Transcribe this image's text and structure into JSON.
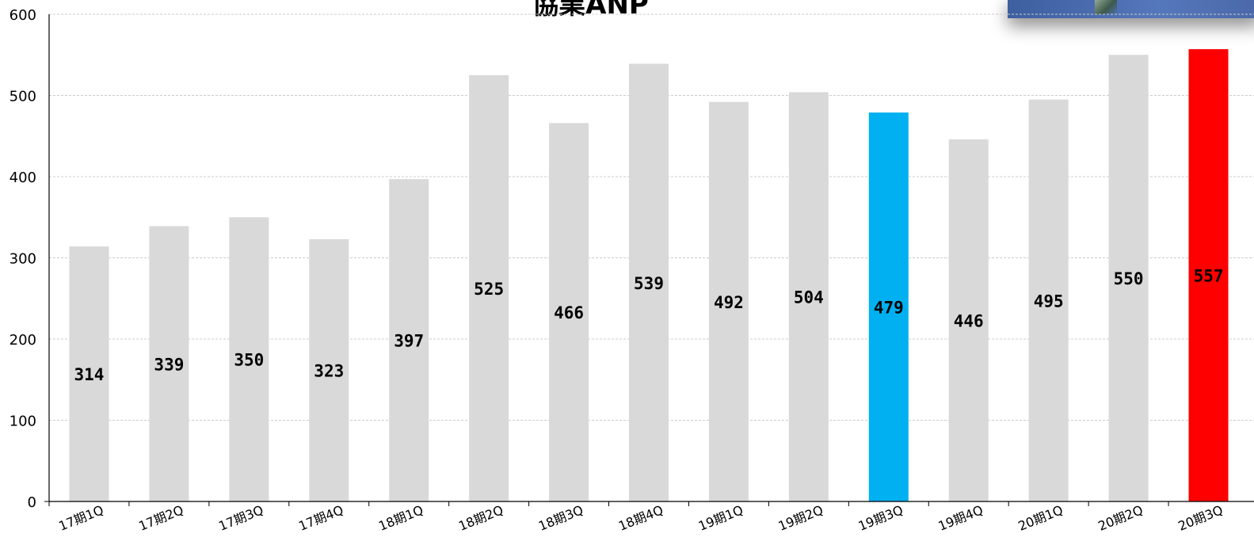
{
  "chart_data": {
    "type": "bar",
    "title": "",
    "categories": [
      "17期1Q",
      "17期2Q",
      "17期3Q",
      "17期4Q",
      "18期1Q",
      "18期2Q",
      "18期3Q",
      "18期4Q",
      "19期1Q",
      "19期2Q",
      "19期3Q",
      "19期4Q",
      "20期1Q",
      "20期2Q",
      "20期3Q"
    ],
    "values": [
      314,
      339,
      350,
      323,
      397,
      525,
      466,
      539,
      492,
      504,
      479,
      446,
      495,
      550,
      557
    ],
    "highlight": {
      "19期3Q": "#00b0f0",
      "20期3Q": "#ff0000"
    },
    "default_color": "#d9d9d9",
    "ylim": [
      0,
      600
    ],
    "yticks": [
      0,
      100,
      200,
      300,
      400,
      500,
      600
    ],
    "grid": true,
    "xlabel": "",
    "ylabel": ""
  },
  "partial_title": "協業ANP"
}
